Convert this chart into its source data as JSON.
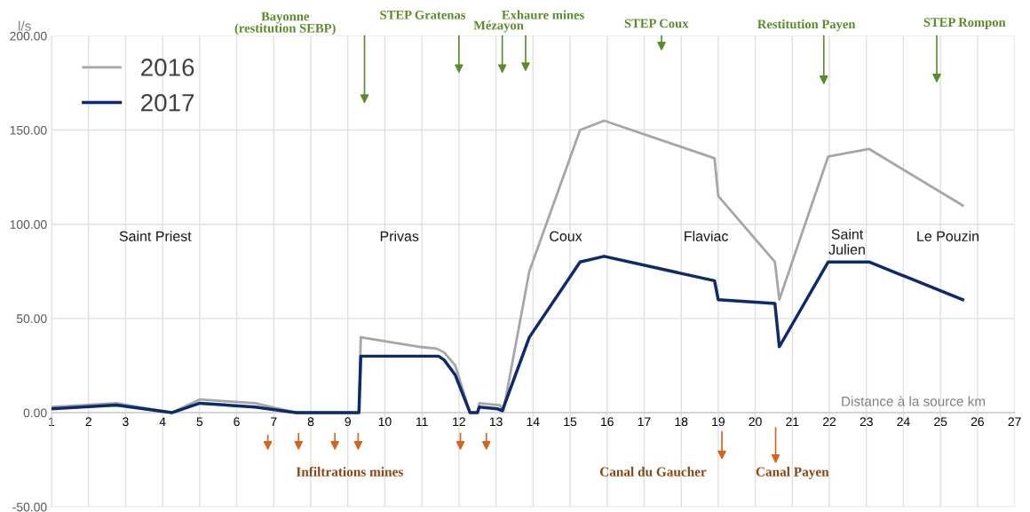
{
  "chart_data": {
    "type": "line",
    "ylabel": "l/s",
    "xlabel": "Distance à la source km",
    "xlim": [
      1,
      27
    ],
    "xticks": [
      1,
      2,
      3,
      4,
      5,
      6,
      7,
      8,
      9,
      10,
      11,
      12,
      13,
      14,
      15,
      16,
      17,
      18,
      19,
      20,
      21,
      22,
      23,
      24,
      25,
      26,
      27
    ],
    "ylim": [
      -50,
      200
    ],
    "yticks": [
      {
        "value": -50,
        "label": "-50.00"
      },
      {
        "value": 0,
        "label": "0.00"
      },
      {
        "value": 50,
        "label": "50.00"
      },
      {
        "value": 100,
        "label": "100.00"
      },
      {
        "value": 150,
        "label": "150.00"
      },
      {
        "value": 200,
        "label": "200.00"
      }
    ],
    "grid": true,
    "legend": "top left",
    "series": [
      {
        "name": "2016",
        "color": "#a6a6a6",
        "x": [
          1,
          2.75,
          4.25,
          5,
          6.5,
          7.6,
          9.3,
          9.35,
          10.9,
          11.4,
          11.6,
          11.9,
          12.3,
          12.5,
          12.55,
          13.1,
          13.2,
          13.9,
          15.27,
          15.92,
          18.9,
          19.0,
          20.53,
          20.65,
          21.97,
          23.07,
          25.6
        ],
        "values": [
          3,
          5,
          0,
          7,
          5,
          0,
          0,
          40,
          35,
          34,
          32,
          25,
          0,
          0,
          5,
          4,
          1,
          75,
          150,
          155,
          135,
          115,
          80,
          60,
          136,
          140,
          110
        ]
      },
      {
        "name": "2017",
        "color": "#0d2a6b",
        "x": [
          1,
          2.75,
          4.25,
          5,
          6.5,
          7.6,
          9.3,
          9.35,
          11.45,
          11.6,
          11.9,
          12.3,
          12.5,
          12.55,
          13.05,
          13.17,
          13.9,
          15.27,
          15.92,
          18.9,
          19.0,
          20.53,
          20.65,
          21.97,
          23.07,
          25.6
        ],
        "values": [
          2,
          4,
          0,
          5,
          3,
          0,
          0,
          30,
          30,
          28,
          20,
          0,
          0,
          3,
          2,
          1,
          40,
          80,
          83,
          70,
          60,
          58,
          35,
          80,
          80,
          60
        ]
      }
    ],
    "annotations": [
      "Saint Priest",
      "Privas",
      "Coux",
      "Flaviac",
      "Saint\nJulien",
      "Le Pouzin",
      "Bayonne\n(restitution SEBP)",
      "STEP Gratenas",
      "Mézayon",
      "Exhaure mines",
      "STEP Coux",
      "Restitution Payen",
      "STEP Rompon",
      "Infiltrations mines",
      "Canal du Gaucher",
      "Canal Payen"
    ]
  }
}
